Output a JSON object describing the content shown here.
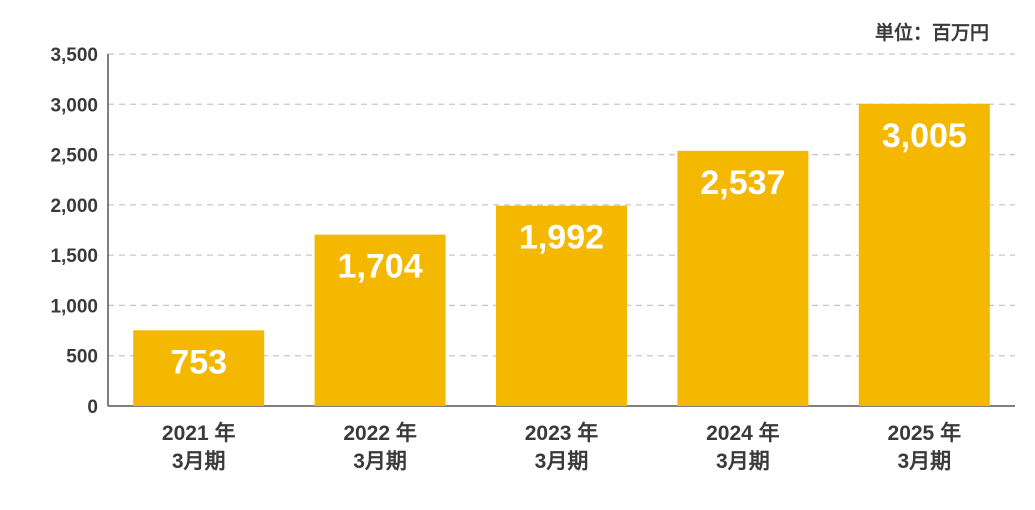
{
  "chart_data": {
    "type": "bar",
    "unit_label": "単位：百万円",
    "categories": [
      {
        "line1": "2021 年",
        "line2": "3月期"
      },
      {
        "line1": "2022 年",
        "line2": "3月期"
      },
      {
        "line1": "2023 年",
        "line2": "3月期"
      },
      {
        "line1": "2024 年",
        "line2": "3月期"
      },
      {
        "line1": "2025 年",
        "line2": "3月期"
      }
    ],
    "values": [
      753,
      1704,
      1992,
      2537,
      3005
    ],
    "value_labels": [
      "753",
      "1,704",
      "1,992",
      "2,537",
      "3,005"
    ],
    "ylim": [
      0,
      3500
    ],
    "yticks": [
      0,
      500,
      1000,
      1500,
      2000,
      2500,
      3000,
      3500
    ],
    "ytick_labels": [
      "0",
      "500",
      "1,000",
      "1,500",
      "2,000",
      "2,500",
      "3,000",
      "3,500"
    ],
    "grid": "horizontal-dashed",
    "colors": {
      "bar": "#F5B800",
      "value_label": "#ffffff",
      "axis": "#555555",
      "grid": "#c8c8c8",
      "text": "#3a3a3a"
    }
  }
}
